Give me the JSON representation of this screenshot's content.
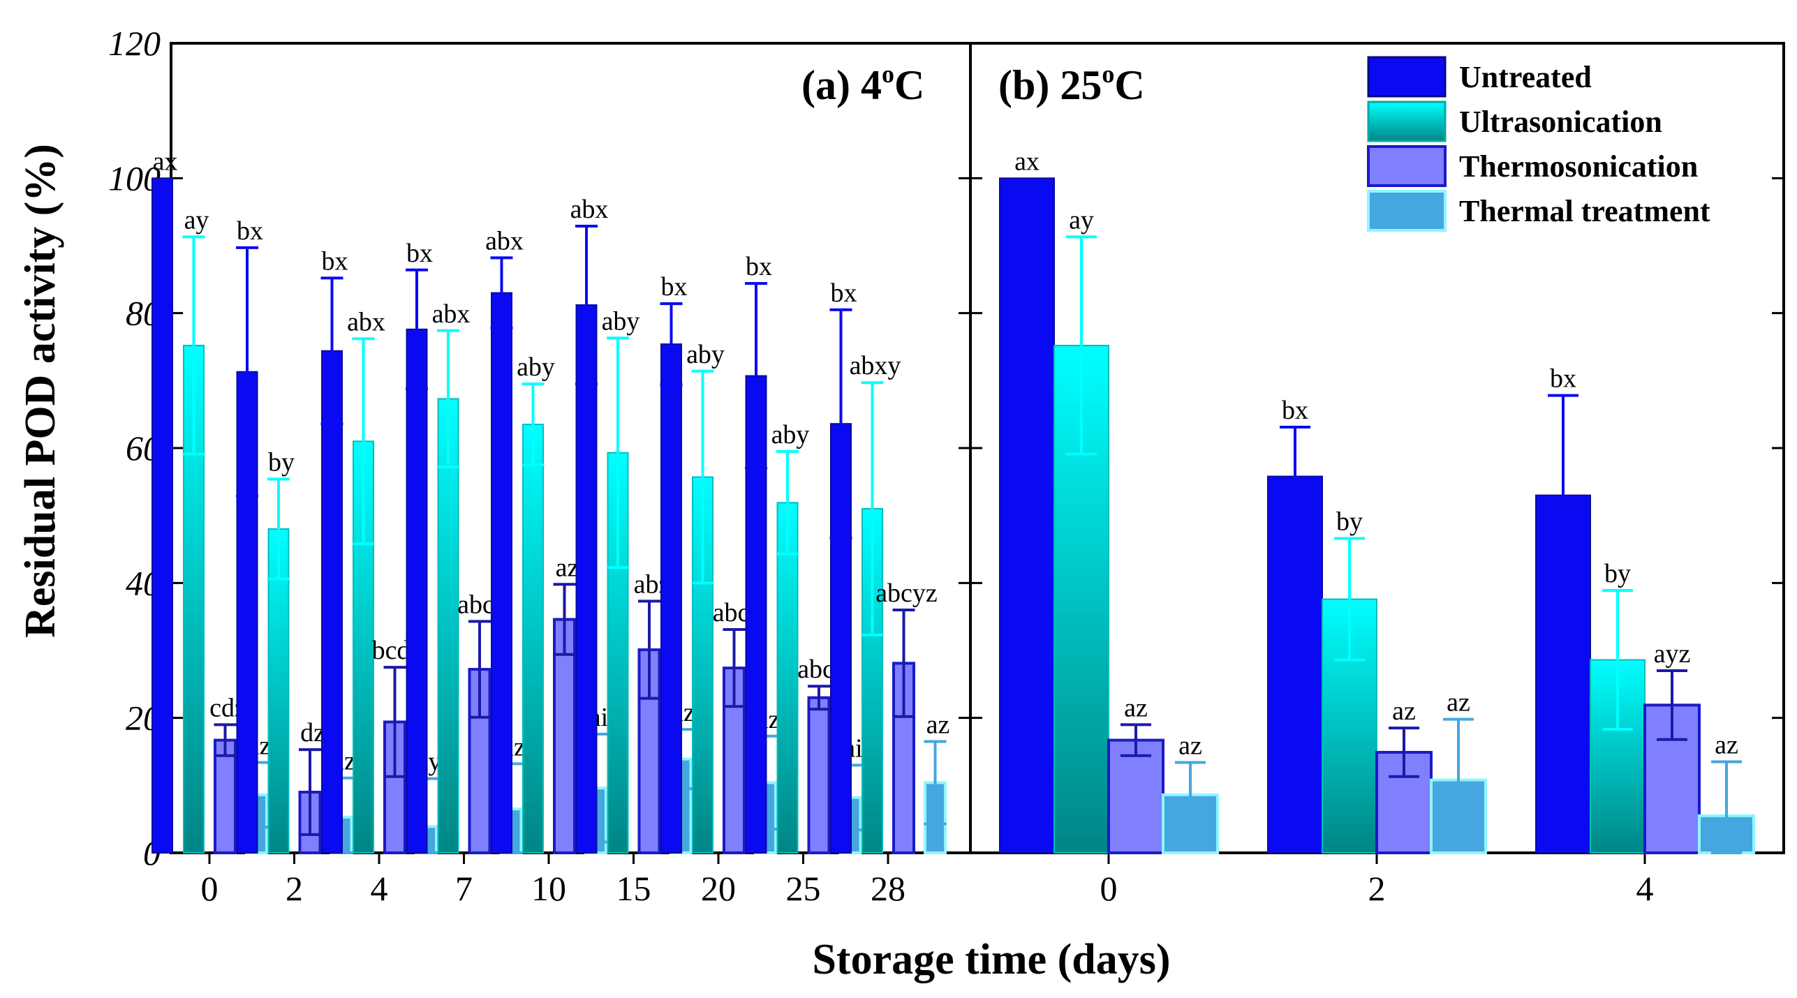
{
  "chart_data": {
    "type": "bar",
    "xlabel": "Storage time (days)",
    "ylabel": "Residual POD activity (%)",
    "ylim": [
      0,
      120
    ],
    "yticks": [
      0,
      20,
      40,
      60,
      80,
      100,
      120
    ],
    "legend": {
      "position": "top-right",
      "entries": [
        "Untreated",
        "Ultrasonication",
        "Thermosonication",
        "Thermal treatment"
      ]
    },
    "colors": {
      "untreated": "#0a0af2",
      "ultrasonication_top": "#00ffff",
      "ultrasonication_bottom": "#008585",
      "thermosonication": "#8080ff",
      "thermal": "#46a6df"
    },
    "panels": [
      {
        "title": "(a) 4°C",
        "title_main": "(a) 4",
        "title_sup": "o",
        "title_end": "C",
        "categories": [
          "0",
          "2",
          "4",
          "7",
          "10",
          "15",
          "20",
          "25",
          "28"
        ],
        "series": [
          {
            "name": "Untreated",
            "values": [
              100,
              71.3,
              74.4,
              77.6,
              83,
              81.2,
              75.4,
              70.7,
              63.6
            ],
            "errors": [
              0,
              18.4,
              10.8,
              8.8,
              5.2,
              11.7,
              6,
              13.7,
              16.9
            ],
            "labels": [
              "ax",
              "bx",
              "bx",
              "bx",
              "abx",
              "abx",
              "bx",
              "bx",
              "bx"
            ]
          },
          {
            "name": "Ultrasonication",
            "values": [
              75.2,
              48,
              61,
              67.3,
              63.5,
              59.3,
              55.7,
              51.9,
              51
            ],
            "errors": [
              16.1,
              7.4,
              15.2,
              10.1,
              6,
              17,
              15.7,
              7.6,
              18.7
            ],
            "labels": [
              "ay",
              "by",
              "abx",
              "abx",
              "aby",
              "aby",
              "aby",
              "aby",
              "abxy"
            ]
          },
          {
            "name": "Thermosonication",
            "values": [
              16.7,
              9,
              19.4,
              27.2,
              34.6,
              30.1,
              27.4,
              23,
              28.1
            ],
            "errors": [
              2.3,
              6.3,
              8.1,
              7.1,
              5.2,
              7.2,
              5.7,
              1.7,
              7.9
            ],
            "labels": [
              "cdz",
              "dz",
              "bcdy",
              "abcy",
              "az",
              "abz",
              "abcz",
              "abcz",
              "abcyz"
            ]
          },
          {
            "name": "Thermal treatment",
            "values": [
              8.6,
              5.3,
              3.9,
              6.5,
              9.6,
              13.9,
              10.4,
              8.2,
              10.4
            ],
            "errors": [
              4.8,
              5.8,
              7.1,
              6.7,
              8,
              4.4,
              6.9,
              4.8,
              6.1
            ],
            "labels": [
              "az",
              "az",
              "ay",
              "az",
              "ai",
              "az",
              "az",
              "ai",
              "az"
            ]
          }
        ]
      },
      {
        "title": "(b) 25°C",
        "title_main": "(b) 25",
        "title_sup": "o",
        "title_end": "C",
        "categories": [
          "0",
          "2",
          "4"
        ],
        "series": [
          {
            "name": "Untreated",
            "values": [
              100,
              55.8,
              53
            ],
            "errors": [
              0,
              7.3,
              14.8
            ],
            "labels": [
              "ax",
              "bx",
              "bx"
            ]
          },
          {
            "name": "Ultrasonication",
            "values": [
              75.2,
              37.6,
              28.6
            ],
            "errors": [
              16.1,
              9,
              10.3
            ],
            "labels": [
              "ay",
              "by",
              "by"
            ]
          },
          {
            "name": "Thermosonication",
            "values": [
              16.7,
              14.9,
              21.9
            ],
            "errors": [
              2.3,
              3.6,
              5.1
            ],
            "labels": [
              "az",
              "az",
              "ayz"
            ]
          },
          {
            "name": "Thermal treatment",
            "values": [
              8.6,
              10.8,
              5.5
            ],
            "errors": [
              4.8,
              9,
              8
            ],
            "labels": [
              "az",
              "az",
              "az"
            ]
          }
        ]
      }
    ]
  }
}
